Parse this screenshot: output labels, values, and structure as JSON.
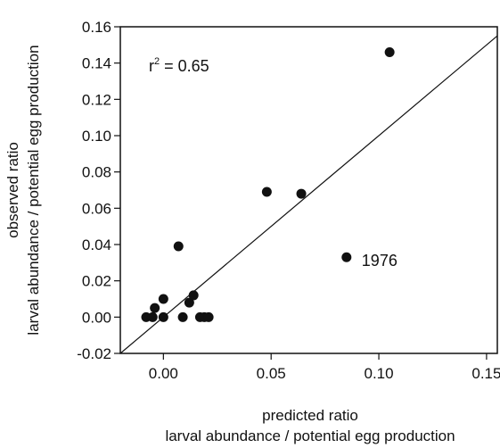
{
  "chart_data": {
    "type": "scatter",
    "xlabel_lines": [
      "predicted ratio",
      "larval abundance / potential egg production"
    ],
    "ylabel_lines": [
      "observed ratio",
      "larval abundance / potential egg production"
    ],
    "xlim": [
      -0.02,
      0.155
    ],
    "ylim": [
      -0.02,
      0.16
    ],
    "x_ticks": [
      0.0,
      0.05,
      0.1,
      0.15
    ],
    "x_tick_labels": [
      "0.00",
      "0.05",
      "0.10",
      "0.15"
    ],
    "y_ticks": [
      -0.02,
      0.0,
      0.02,
      0.04,
      0.06,
      0.08,
      0.1,
      0.12,
      0.14,
      0.16
    ],
    "y_tick_labels": [
      "-0.02",
      "0.00",
      "0.02",
      "0.04",
      "0.06",
      "0.08",
      "0.10",
      "0.12",
      "0.14",
      "0.16"
    ],
    "reference_line": {
      "type": "1:1",
      "from": [
        -0.02,
        -0.02
      ],
      "to": [
        0.155,
        0.155
      ]
    },
    "points": [
      {
        "x": -0.008,
        "y": 0.0
      },
      {
        "x": -0.005,
        "y": 0.0
      },
      {
        "x": -0.004,
        "y": 0.005
      },
      {
        "x": 0.0,
        "y": 0.0
      },
      {
        "x": 0.0,
        "y": 0.01
      },
      {
        "x": 0.007,
        "y": 0.039
      },
      {
        "x": 0.009,
        "y": 0.0
      },
      {
        "x": 0.012,
        "y": 0.008
      },
      {
        "x": 0.014,
        "y": 0.012
      },
      {
        "x": 0.017,
        "y": 0.0
      },
      {
        "x": 0.019,
        "y": 0.0
      },
      {
        "x": 0.021,
        "y": 0.0
      },
      {
        "x": 0.048,
        "y": 0.069
      },
      {
        "x": 0.064,
        "y": 0.068
      },
      {
        "x": 0.085,
        "y": 0.033,
        "label": "1976"
      },
      {
        "x": 0.105,
        "y": 0.146
      }
    ],
    "annotation": {
      "prefix": "r",
      "superscript": "2",
      "suffix": " = 0.65"
    },
    "marker_color": "#111111",
    "grid": false,
    "legend": "none"
  }
}
